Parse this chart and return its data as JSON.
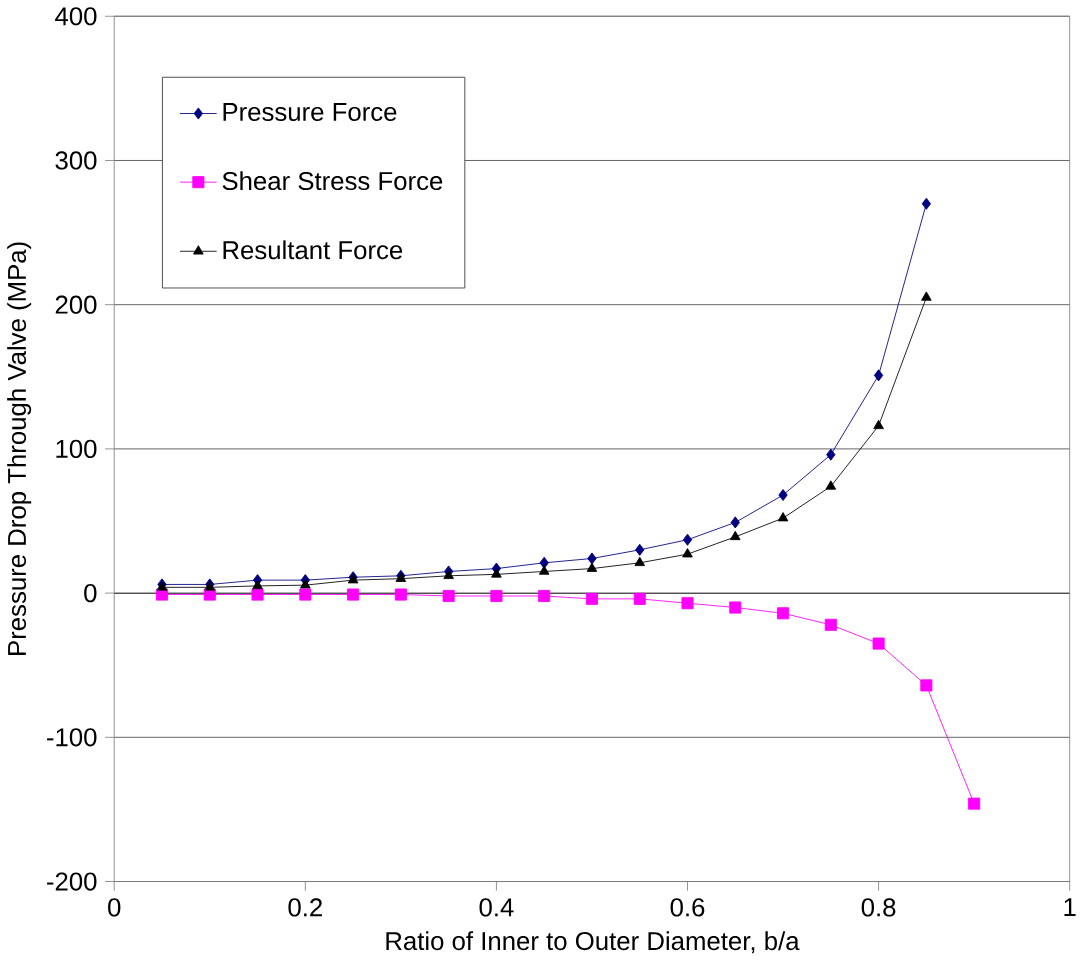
{
  "chart_data": {
    "type": "line",
    "xlabel": "Ratio of Inner to Outer Diameter, b/a",
    "ylabel": "Pressure Drop Through Valve (MPa)",
    "x": [
      0.05,
      0.1,
      0.15,
      0.2,
      0.25,
      0.3,
      0.35,
      0.4,
      0.45,
      0.5,
      0.55,
      0.6,
      0.65,
      0.7,
      0.75,
      0.8,
      0.85,
      0.9
    ],
    "series": [
      {
        "name": "Pressure Force",
        "color": "#000080",
        "marker": "diamond",
        "values": [
          6,
          6,
          9,
          9,
          11,
          12,
          15,
          17,
          21,
          24,
          30,
          37,
          49,
          68,
          96,
          151,
          270,
          null
        ]
      },
      {
        "name": "Shear Stress Force",
        "color": "#ff00ff",
        "marker": "square",
        "values": [
          -1,
          -1,
          -1,
          -1,
          -1,
          -1,
          -2,
          -2,
          -2,
          -4,
          -4,
          -7,
          -10,
          -14,
          -22,
          -35,
          -64,
          -146
        ]
      },
      {
        "name": "Resultant Force",
        "color": "#000000",
        "marker": "triangle",
        "values": [
          4,
          4,
          5,
          5.5,
          9,
          10,
          12,
          13,
          15,
          17,
          21,
          27,
          39,
          52,
          74,
          116,
          205,
          null
        ]
      }
    ],
    "xlim": [
      0,
      1
    ],
    "ylim": [
      -200,
      400
    ],
    "xticks": [
      0,
      0.2,
      0.4,
      0.6,
      0.8,
      1
    ],
    "yticks": [
      -200,
      -100,
      0,
      100,
      200,
      300,
      400
    ],
    "grid": "y",
    "legend": "top left",
    "line_style": "solid"
  }
}
